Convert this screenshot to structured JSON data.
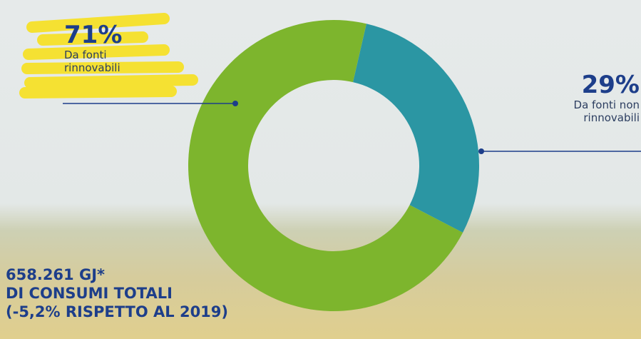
{
  "chart_data": {
    "type": "donut",
    "categories": [
      "Da fonti rinnovabili",
      "Da fonti non rinnovabili"
    ],
    "series": [
      {
        "values": [
          71,
          29
        ],
        "value_labels": [
          "71%",
          "29%"
        ],
        "colors": [
          "#7db52d",
          "#2b96a3"
        ]
      }
    ],
    "annotation": [
      "658.261 GJ*",
      "DI CONSUMI TOTALI",
      "(-5,2% RISPETTO AL 2019)"
    ]
  }
}
